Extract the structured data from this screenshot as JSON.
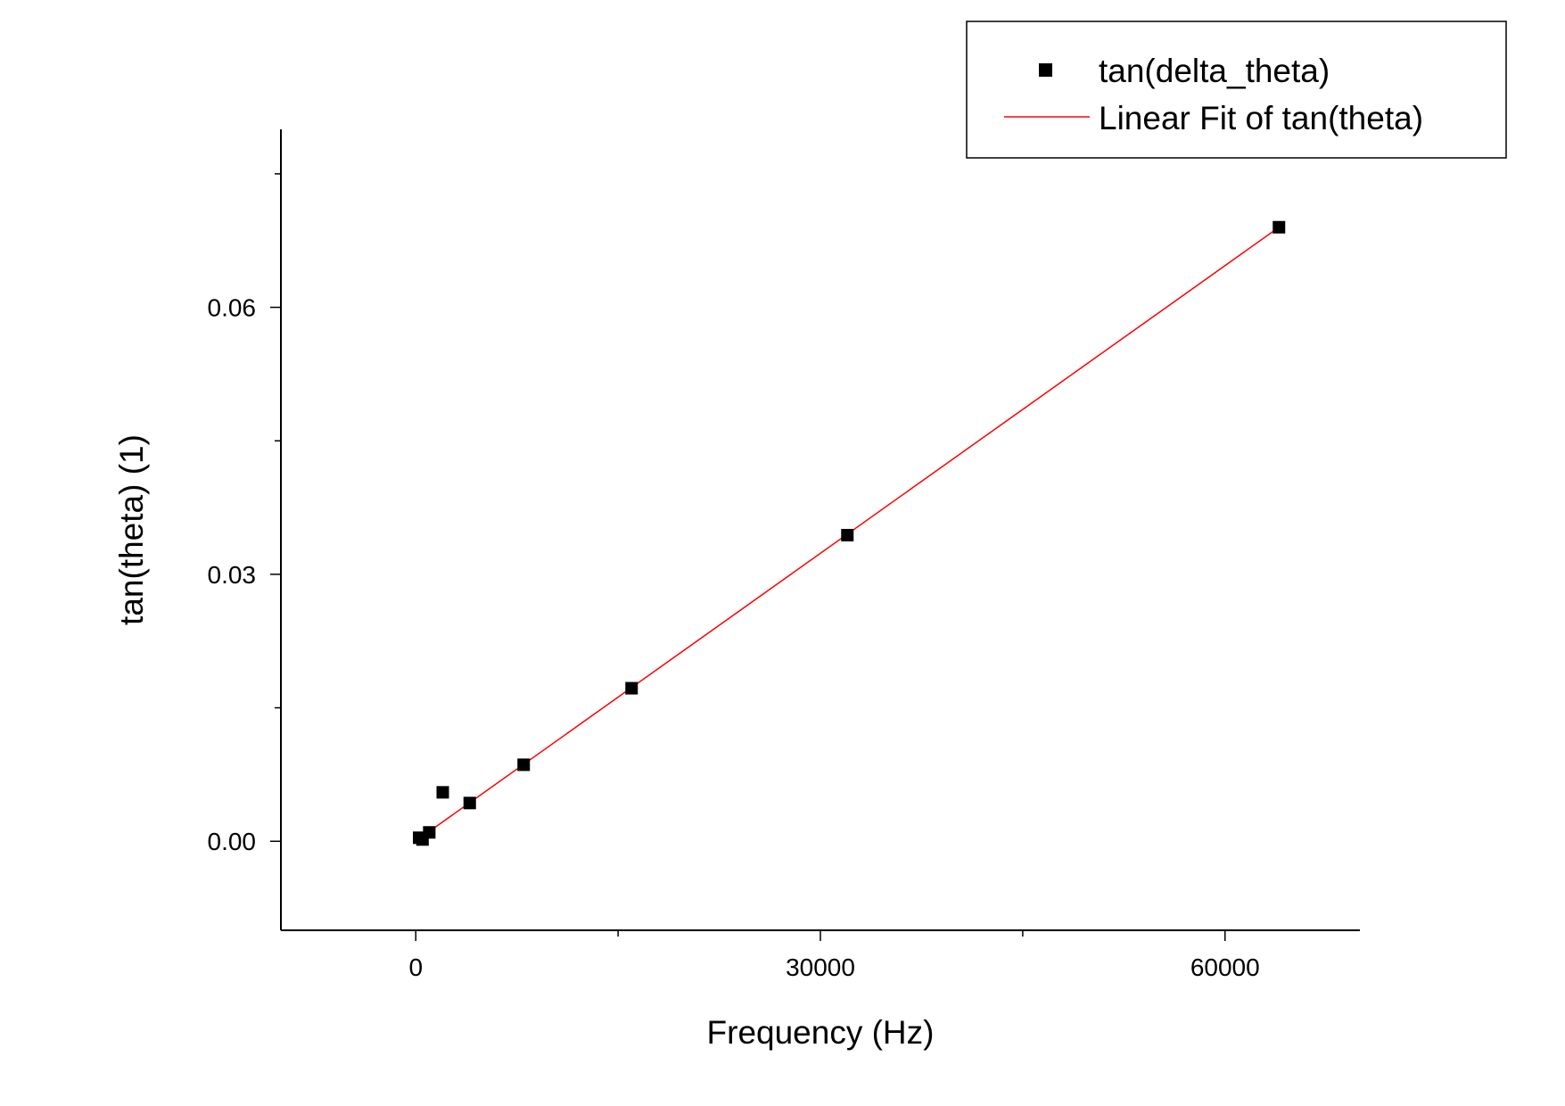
{
  "colors": {
    "scatter": "#000000",
    "fit_line": "#ff0000",
    "axes": "#000000",
    "background": "#ffffff"
  },
  "chart_data": {
    "type": "scatter",
    "title": "",
    "xlabel": "Frequency (Hz)",
    "ylabel": "tan(theta) (1)",
    "xlim": [
      -10000,
      70000
    ],
    "ylim": [
      -0.01,
      0.08
    ],
    "x_ticks": [
      0,
      30000,
      60000
    ],
    "x_tick_labels": [
      "0",
      "30000",
      "60000"
    ],
    "x_minor_ticks": [
      15000,
      45000
    ],
    "y_ticks": [
      0,
      0.03,
      0.06
    ],
    "y_tick_labels": [
      "0.00",
      "0.03",
      "0.06"
    ],
    "y_minor_ticks": [
      0.015,
      0.045,
      0.075
    ],
    "grid": false,
    "legend_position": "top-right",
    "series": [
      {
        "name": "tan(delta_theta)",
        "type": "scatter",
        "marker": "square",
        "x": [
          250,
          500,
          1000,
          2000,
          4000,
          8000,
          16000,
          32000,
          64000
        ],
        "y": [
          0.0004,
          0.0002,
          0.001,
          0.0055,
          0.0043,
          0.0086,
          0.0172,
          0.0344,
          0.069
        ]
      },
      {
        "name": "Linear Fit of tan(theta)",
        "type": "line",
        "x": [
          250,
          64000
        ],
        "y": [
          0.0003,
          0.069
        ]
      }
    ]
  }
}
